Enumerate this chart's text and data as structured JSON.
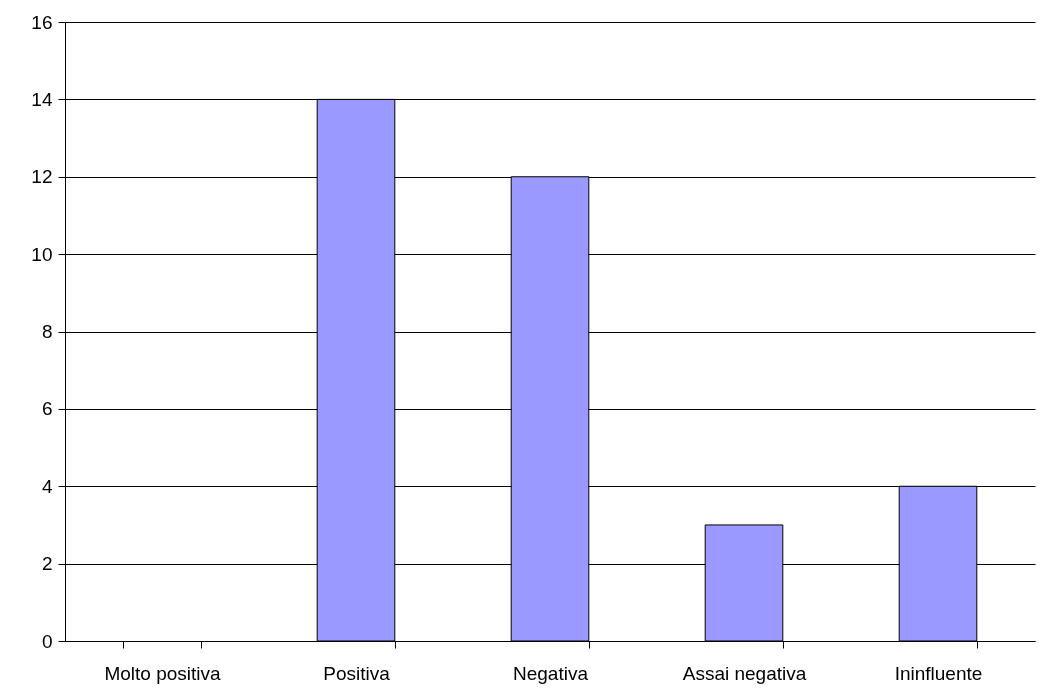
{
  "chart_data": {
    "type": "bar",
    "categories": [
      "Molto positiva",
      "Positiva",
      "Negativa",
      "Assai negativa",
      "Ininfluente"
    ],
    "values": [
      0,
      14,
      12,
      3,
      4
    ],
    "color": "#9999ff",
    "ylim": [
      0,
      16
    ],
    "yticks": [
      0,
      2,
      4,
      6,
      8,
      10,
      12,
      14,
      16
    ],
    "grid": "y"
  }
}
